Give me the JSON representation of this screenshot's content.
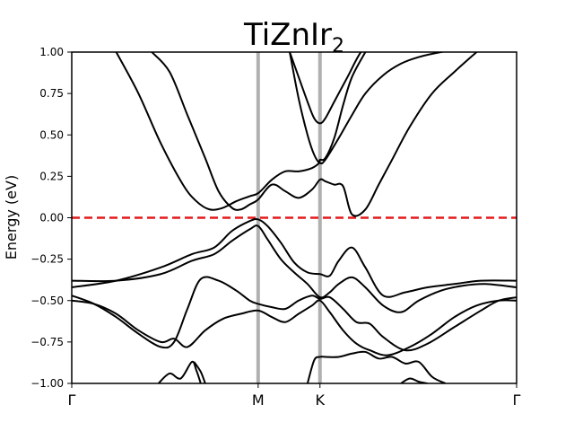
{
  "chart_data": {
    "type": "line",
    "title": "TiZnIr",
    "title_subscript": "2",
    "ylabel": "Energy (eV)",
    "ylim": [
      -1.0,
      1.0
    ],
    "xlim": [
      0,
      1.0
    ],
    "yticks": [
      1.0,
      0.75,
      0.5,
      0.25,
      0.0,
      -0.25,
      -0.5,
      -0.75,
      -1.0
    ],
    "ytick_labels": [
      "1.00",
      "0.75",
      "0.50",
      "0.25",
      "0.00",
      "−0.25",
      "−0.50",
      "−0.75",
      "−1.00"
    ],
    "kpoints": [
      {
        "label": "Γ",
        "x": 0.0
      },
      {
        "label": "M",
        "x": 0.419
      },
      {
        "label": "K",
        "x": 0.558
      },
      {
        "label": "Γ",
        "x": 1.0
      }
    ],
    "fermi_level": 0.0,
    "colors": {
      "bands": "#000000",
      "fermi": "#e41a1c",
      "kline": "#b0b0b0"
    },
    "series": [
      {
        "x": [
          0.1,
          0.15,
          0.2,
          0.25,
          0.28,
          0.31,
          0.34,
          0.37,
          0.4,
          0.42,
          0.45,
          0.48,
          0.51,
          0.54,
          0.556,
          0.558,
          0.57,
          0.59,
          0.61,
          0.63,
          0.66
        ],
        "y": [
          1.0,
          0.75,
          0.45,
          0.2,
          0.1,
          0.05,
          0.06,
          0.1,
          0.13,
          0.15,
          0.23,
          0.28,
          0.28,
          0.3,
          0.33,
          0.35,
          0.36,
          0.48,
          0.68,
          0.85,
          1.0
        ]
      },
      {
        "x": [
          0.18,
          0.22,
          0.26,
          0.3,
          0.33,
          0.36,
          0.38,
          0.4,
          0.419,
          0.45,
          0.48,
          0.51,
          0.54,
          0.558,
          0.57,
          0.59,
          0.61,
          0.63,
          0.66,
          0.69,
          0.72,
          0.76,
          0.81,
          0.86,
          0.91
        ],
        "y": [
          1.0,
          0.88,
          0.62,
          0.36,
          0.16,
          0.06,
          0.05,
          0.08,
          0.11,
          0.2,
          0.16,
          0.12,
          0.17,
          0.23,
          0.22,
          0.2,
          0.19,
          0.02,
          0.05,
          0.2,
          0.35,
          0.55,
          0.75,
          0.88,
          1.0
        ]
      },
      {
        "x": [
          0.49,
          0.51,
          0.53,
          0.545,
          0.558,
          0.57,
          0.59,
          0.62,
          0.65,
          0.68,
          0.72,
          0.75
        ],
        "y": [
          1.0,
          0.85,
          0.7,
          0.6,
          0.57,
          0.6,
          0.7,
          0.85,
          1.0,
          1.07,
          1.1,
          1.1
        ]
      },
      {
        "x": [
          0.49,
          0.51,
          0.53,
          0.545,
          0.558,
          0.57,
          0.6,
          0.63,
          0.66,
          0.7,
          0.74,
          0.78,
          0.83,
          0.88,
          0.93,
          0.98,
          1.0
        ],
        "y": [
          1.0,
          0.72,
          0.5,
          0.38,
          0.33,
          0.35,
          0.48,
          0.62,
          0.75,
          0.86,
          0.93,
          0.97,
          1.0,
          1.02,
          1.03,
          1.03,
          1.03
        ]
      },
      {
        "x": [
          0.0,
          0.1,
          0.2,
          0.27,
          0.32,
          0.36,
          0.4,
          0.419,
          0.44,
          0.47,
          0.5,
          0.53,
          0.558,
          0.58,
          0.6,
          0.63,
          0.66,
          0.7,
          0.75,
          0.8,
          0.86,
          0.92,
          1.0
        ],
        "y": [
          -0.42,
          -0.38,
          -0.3,
          -0.22,
          -0.18,
          -0.08,
          -0.02,
          -0.01,
          -0.05,
          -0.15,
          -0.27,
          -0.33,
          -0.34,
          -0.35,
          -0.26,
          -0.18,
          -0.3,
          -0.47,
          -0.45,
          -0.42,
          -0.4,
          -0.38,
          -0.38
        ]
      },
      {
        "x": [
          0.0,
          0.1,
          0.2,
          0.27,
          0.32,
          0.36,
          0.4,
          0.419,
          0.44,
          0.47,
          0.5,
          0.53,
          0.558,
          0.58,
          0.6,
          0.63,
          0.66,
          0.7,
          0.74,
          0.78,
          0.83,
          0.88,
          0.93,
          1.0
        ],
        "y": [
          -0.38,
          -0.38,
          -0.34,
          -0.26,
          -0.22,
          -0.14,
          -0.07,
          -0.05,
          -0.13,
          -0.25,
          -0.33,
          -0.4,
          -0.48,
          -0.45,
          -0.4,
          -0.36,
          -0.42,
          -0.53,
          -0.57,
          -0.5,
          -0.44,
          -0.41,
          -0.4,
          -0.42
        ]
      },
      {
        "x": [
          0.0,
          0.05,
          0.1,
          0.15,
          0.2,
          0.23,
          0.26,
          0.29,
          0.33,
          0.37,
          0.4,
          0.419,
          0.45,
          0.48,
          0.51,
          0.54,
          0.558,
          0.58,
          0.61,
          0.64,
          0.67,
          0.7,
          0.75,
          0.8,
          0.86,
          0.92,
          0.96,
          1.0
        ],
        "y": [
          -0.47,
          -0.52,
          -0.6,
          -0.7,
          -0.78,
          -0.75,
          -0.55,
          -0.37,
          -0.38,
          -0.44,
          -0.5,
          -0.52,
          -0.54,
          -0.55,
          -0.5,
          -0.47,
          -0.49,
          -0.48,
          -0.55,
          -0.63,
          -0.64,
          -0.72,
          -0.8,
          -0.76,
          -0.66,
          -0.56,
          -0.5,
          -0.48
        ]
      },
      {
        "x": [
          0.0,
          0.05,
          0.1,
          0.15,
          0.2,
          0.23,
          0.26,
          0.3,
          0.34,
          0.38,
          0.419,
          0.45,
          0.48,
          0.51,
          0.54,
          0.558,
          0.58,
          0.61,
          0.64,
          0.67,
          0.71,
          0.76,
          0.81,
          0.86,
          0.91,
          0.96,
          1.0
        ],
        "y": [
          -0.5,
          -0.52,
          -0.58,
          -0.68,
          -0.75,
          -0.73,
          -0.78,
          -0.68,
          -0.61,
          -0.58,
          -0.56,
          -0.6,
          -0.63,
          -0.58,
          -0.53,
          -0.5,
          -0.57,
          -0.68,
          -0.76,
          -0.8,
          -0.83,
          -0.78,
          -0.7,
          -0.6,
          -0.53,
          -0.5,
          -0.5
        ]
      },
      {
        "x": [
          0.195,
          0.22,
          0.245,
          0.27,
          0.28,
          0.29
        ],
        "y": [
          -1.0,
          -0.94,
          -0.97,
          -0.87,
          -0.92,
          -1.0
        ]
      },
      {
        "x": [
          0.275,
          0.29,
          0.3
        ],
        "y": [
          -0.87,
          -0.93,
          -1.0
        ]
      },
      {
        "x": [
          0.53,
          0.545,
          0.558,
          0.57,
          0.6,
          0.63,
          0.66,
          0.69,
          0.72,
          0.75,
          0.78,
          0.81,
          0.84
        ],
        "y": [
          -1.0,
          -0.86,
          -0.84,
          -0.84,
          -0.84,
          -0.82,
          -0.81,
          -0.85,
          -0.84,
          -0.88,
          -0.87,
          -0.96,
          -1.0
        ]
      },
      {
        "x": [
          0.74,
          0.76,
          0.78,
          0.8
        ],
        "y": [
          -1.0,
          -0.97,
          -0.99,
          -1.0
        ]
      }
    ]
  }
}
